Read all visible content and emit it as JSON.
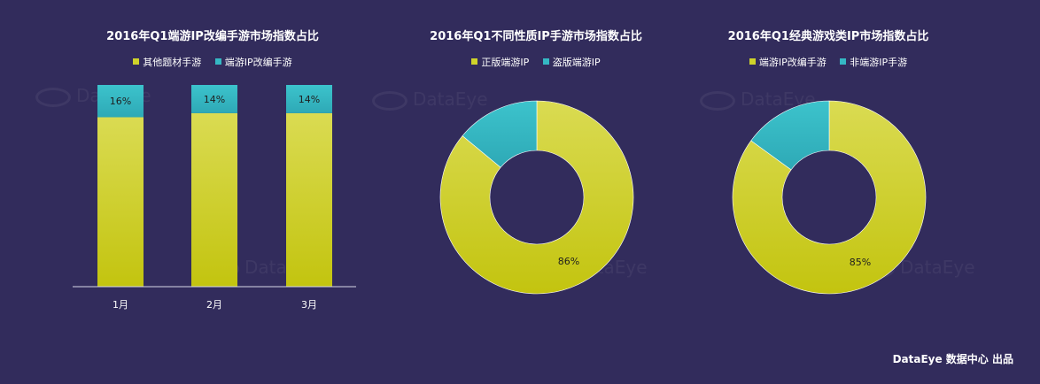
{
  "colors": {
    "background": "#322c5c",
    "primary": "#cfd32a",
    "secondary": "#35b8c4"
  },
  "watermark": "DataEye",
  "footer": "DataEye 数据中心 出品",
  "chart_data": [
    {
      "type": "bar",
      "stacked": true,
      "percent": true,
      "title": "2016年Q1端游IP改编手游市场指数占比",
      "categories": [
        "1月",
        "2月",
        "3月"
      ],
      "series": [
        {
          "name": "其他题材手游",
          "values": [
            84,
            86,
            86
          ]
        },
        {
          "name": "端游IP改编手游",
          "values": [
            16,
            14,
            14
          ]
        }
      ],
      "data_labels": [
        "16%",
        "14%",
        "14%"
      ],
      "ylim": [
        0,
        100
      ],
      "legend": "top"
    },
    {
      "type": "pie",
      "donut": true,
      "title": "2016年Q1不同性质IP手游市场指数占比",
      "series": [
        {
          "name": "正版端游IP",
          "value": 86
        },
        {
          "name": "盗版端游IP",
          "value": 14
        }
      ],
      "data_labels": [
        "86%"
      ],
      "legend": "top"
    },
    {
      "type": "pie",
      "donut": true,
      "title": "2016年Q1经典游戏类IP市场指数占比",
      "series": [
        {
          "name": "端游IP改编手游",
          "value": 85
        },
        {
          "name": "非端游IP手游",
          "value": 15
        }
      ],
      "data_labels": [
        "85%"
      ],
      "legend": "top"
    }
  ]
}
